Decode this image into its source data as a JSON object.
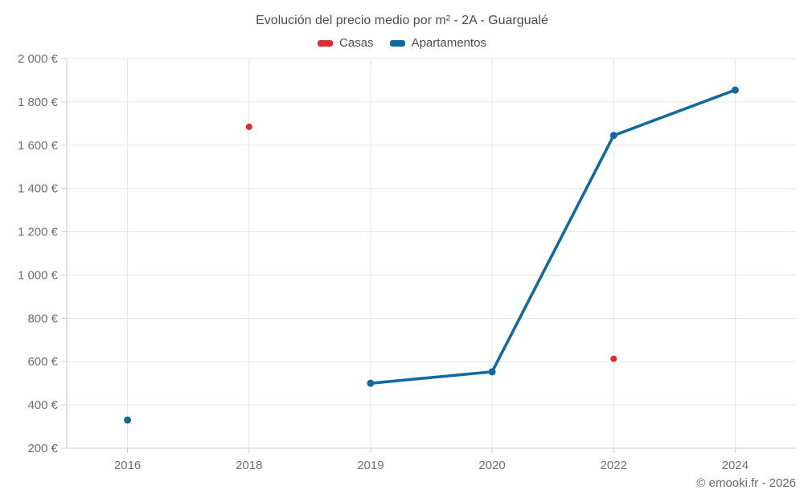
{
  "title": "Evolución del precio medio por m² - 2A - Guargualé",
  "legend": [
    {
      "label": "Casas",
      "color": "#e12b2e"
    },
    {
      "label": "Apartamentos",
      "color": "#11699f"
    }
  ],
  "footer": "© emooki.fr - 2026",
  "colors": {
    "casas": "#e12b2e",
    "apartamentos": "#11699f",
    "gridline": "#e6e6e6",
    "axis_line": "#cccccc",
    "tick_text": "#6e6e6e",
    "title_text": "#4c4c4c"
  },
  "chart_data": {
    "type": "line",
    "title": "Evolución del precio medio por m² - 2A - Guargualé",
    "xlabel": "",
    "ylabel": "",
    "categories": [
      "2016",
      "2018",
      "2019",
      "2020",
      "2022",
      "2024"
    ],
    "series": [
      {
        "name": "Casas",
        "color": "#e12b2e",
        "marker_radius": 4,
        "values": [
          null,
          1685,
          null,
          null,
          613,
          null
        ]
      },
      {
        "name": "Apartamentos",
        "color": "#11699f",
        "marker_radius": 4.5,
        "values": [
          330,
          null,
          500,
          553,
          1645,
          1855
        ]
      }
    ],
    "ylim": [
      200,
      2000
    ],
    "y_tick_step": 200,
    "y_tick_labels": [
      "200 €",
      "400 €",
      "600 €",
      "800 €",
      "1 000 €",
      "1 200 €",
      "1 400 €",
      "1 600 €",
      "1 800 €",
      "2 000 €"
    ],
    "grid": true,
    "legend_position": "top",
    "line_breaks_on_null": true
  }
}
